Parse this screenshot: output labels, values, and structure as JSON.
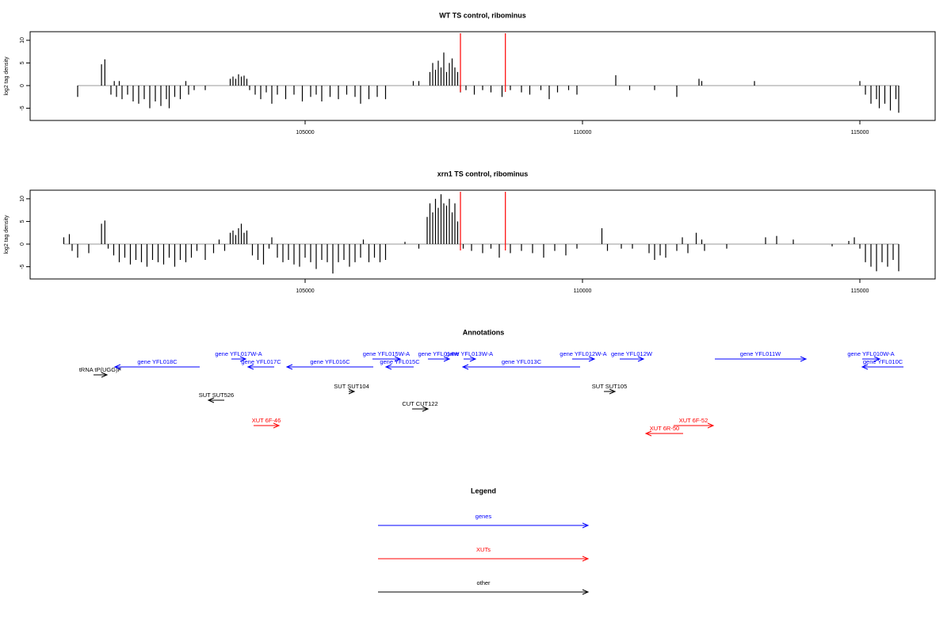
{
  "chart_data": [
    {
      "type": "bar",
      "title": "WT TS control, ribominus",
      "ylabel": "log2 tag density",
      "color": "#000000",
      "xlim": [
        100043,
        116357
      ],
      "ylim": [
        -7.7,
        11.9
      ],
      "xticks": [
        105000,
        110000,
        115000
      ],
      "yticks": [
        -5,
        0,
        5,
        10
      ],
      "vlines": [
        107800,
        108610
      ],
      "vline_color": "#ff0000",
      "baseline_color": "#999999",
      "x": [
        100900,
        101330,
        101390,
        101500,
        101560,
        101600,
        101650,
        101700,
        101800,
        101900,
        102000,
        102100,
        102200,
        102300,
        102400,
        102500,
        102550,
        102650,
        102750,
        102850,
        102900,
        103000,
        103200,
        103650,
        103700,
        103750,
        103800,
        103850,
        103900,
        103950,
        104000,
        104100,
        104200,
        104300,
        104400,
        104500,
        104650,
        104800,
        104950,
        105100,
        105200,
        105300,
        105450,
        105600,
        105750,
        105900,
        106000,
        106150,
        106300,
        106450,
        106950,
        107050,
        107250,
        107300,
        107350,
        107400,
        107450,
        107500,
        107550,
        107600,
        107650,
        107700,
        107750,
        107800,
        107900,
        108050,
        108200,
        108350,
        108550,
        108700,
        108900,
        109050,
        109250,
        109400,
        109550,
        109750,
        109900,
        110600,
        110850,
        111300,
        111700,
        112100,
        112150,
        113100,
        115000,
        115100,
        115200,
        115300,
        115350,
        115450,
        115550,
        115650,
        115700
      ],
      "values": [
        -2.5,
        4.7,
        5.8,
        -2,
        1,
        -2.5,
        1,
        -3,
        -2,
        -3.5,
        -4,
        -3,
        -5,
        -3.5,
        -4.5,
        -3,
        -5,
        -2.5,
        -3,
        1,
        -2,
        -1,
        -1,
        1.5,
        2,
        1.5,
        2.5,
        2,
        2.2,
        1.5,
        -1,
        -2,
        -3,
        -1.5,
        -4,
        -2,
        -3,
        -2,
        -3.5,
        -2.5,
        -2,
        -3.5,
        -2.5,
        -3,
        -2,
        -2.5,
        -4,
        -3,
        -2.5,
        -3,
        1,
        1,
        3,
        5,
        3.5,
        5.5,
        4,
        7.3,
        3,
        5,
        6,
        4,
        3,
        -1.5,
        -1,
        -2,
        -1,
        -1.5,
        -2.5,
        -1,
        -1.5,
        -2,
        -1,
        -3,
        -1.5,
        -1,
        -2,
        2.3,
        -1,
        -1,
        -2.5,
        1.5,
        1,
        1,
        1,
        -2,
        -4,
        -3,
        -5,
        -4,
        -5.5,
        -3,
        -6
      ]
    },
    {
      "type": "bar",
      "title": "xrn1 TS control, ribominus",
      "ylabel": "log2 tag density",
      "color": "#000000",
      "xlim": [
        100043,
        116357
      ],
      "ylim": [
        -7.7,
        11.9
      ],
      "xticks": [
        105000,
        110000,
        115000
      ],
      "yticks": [
        -5,
        0,
        5,
        10
      ],
      "vlines": [
        107800,
        108610
      ],
      "vline_color": "#ff0000",
      "baseline_color": "#999999",
      "x": [
        100650,
        100750,
        100800,
        100900,
        101100,
        101330,
        101390,
        101450,
        101550,
        101650,
        101750,
        101850,
        101950,
        102050,
        102150,
        102250,
        102350,
        102450,
        102550,
        102650,
        102750,
        102850,
        102950,
        103050,
        103200,
        103350,
        103450,
        103550,
        103650,
        103700,
        103750,
        103800,
        103850,
        103900,
        103950,
        104050,
        104150,
        104250,
        104350,
        104400,
        104500,
        104600,
        104700,
        104800,
        104900,
        105000,
        105100,
        105200,
        105300,
        105400,
        105500,
        105600,
        105700,
        105800,
        105900,
        106000,
        106050,
        106150,
        106250,
        106350,
        106450,
        106800,
        107050,
        107200,
        107250,
        107300,
        107350,
        107400,
        107450,
        107500,
        107550,
        107600,
        107650,
        107700,
        107750,
        107850,
        108000,
        108200,
        108350,
        108500,
        108700,
        108900,
        109100,
        109300,
        109500,
        109700,
        109900,
        110350,
        110450,
        110700,
        110900,
        111200,
        111300,
        111400,
        111500,
        111700,
        111800,
        111900,
        112050,
        112150,
        112200,
        112600,
        113300,
        113500,
        113800,
        114500,
        114800,
        114900,
        115000,
        115100,
        115200,
        115300,
        115400,
        115500,
        115600,
        115700
      ],
      "values": [
        1.5,
        2.2,
        -1.5,
        -3,
        -2,
        4.5,
        5.2,
        -1,
        -2.5,
        -4,
        -3,
        -4.5,
        -3.5,
        -4,
        -5,
        -3.5,
        -4,
        -4.5,
        -3,
        -5,
        -3.5,
        -4,
        -3,
        -1.5,
        -3.5,
        -2,
        1,
        -1.5,
        2.5,
        3,
        2,
        3.5,
        4.5,
        2.5,
        3,
        -2.5,
        -3.5,
        -4.5,
        -1,
        1.5,
        -3,
        -4,
        -3.5,
        -4.5,
        -5,
        -3,
        -4,
        -5.5,
        -3.5,
        -4,
        -6.5,
        -4,
        -3.5,
        -5,
        -4,
        -3,
        1,
        -4,
        -3,
        -4,
        -3.5,
        0.5,
        -1,
        6,
        9,
        7,
        10,
        8,
        11,
        9,
        8.5,
        10,
        7,
        9,
        5,
        -1,
        -1.5,
        -2,
        -1,
        -3,
        -2,
        -1.5,
        -2,
        -3,
        -1.5,
        -2.5,
        -1,
        3.5,
        -1.5,
        -1,
        -1,
        -2,
        -3.5,
        -2.5,
        -3,
        -1.5,
        1.5,
        -2,
        2.5,
        1,
        -1.5,
        -1,
        1.5,
        1.8,
        1,
        -0.5,
        0.7,
        1.5,
        -1,
        -4,
        -5,
        -6,
        -4,
        -5,
        -3.5,
        -6
      ]
    }
  ],
  "annotations": {
    "title": "Annotations",
    "features": [
      {
        "label": "tRNA tP(UGG)F",
        "start": 101186,
        "end": 101429,
        "strand": "+",
        "kind": "other"
      },
      {
        "label": "gene YFL018C",
        "start": 101571,
        "end": 103100,
        "strand": "-",
        "kind": "genes"
      },
      {
        "label": "gene YFL017W-A",
        "start": 103671,
        "end": 103929,
        "strand": "+",
        "kind": "genes"
      },
      {
        "label": "gene YFL017C",
        "start": 103971,
        "end": 104443,
        "strand": "-",
        "kind": "genes"
      },
      {
        "label": "gene YFL016C",
        "start": 104671,
        "end": 106229,
        "strand": "-",
        "kind": "genes"
      },
      {
        "label": "gene YFL015W-A",
        "start": 106214,
        "end": 106714,
        "strand": "+",
        "kind": "genes"
      },
      {
        "label": "gene YFL015C",
        "start": 106457,
        "end": 106957,
        "strand": "-",
        "kind": "genes"
      },
      {
        "label": "gene YFL014W",
        "start": 107214,
        "end": 107600,
        "strand": "+",
        "kind": "genes"
      },
      {
        "label": "gene YFL013W-A",
        "start": 107857,
        "end": 108071,
        "strand": "+",
        "kind": "genes"
      },
      {
        "label": "gene YFL013C",
        "start": 107843,
        "end": 109957,
        "strand": "-",
        "kind": "genes"
      },
      {
        "label": "gene YFL012W-A",
        "start": 109814,
        "end": 110214,
        "strand": "+",
        "kind": "genes"
      },
      {
        "label": "gene YFL012W",
        "start": 110671,
        "end": 111100,
        "strand": "+",
        "kind": "genes"
      },
      {
        "label": "gene YFL011W",
        "start": 112386,
        "end": 114029,
        "strand": "+",
        "kind": "genes"
      },
      {
        "label": "gene YFL010W-A",
        "start": 115043,
        "end": 115357,
        "strand": "+",
        "kind": "genes"
      },
      {
        "label": "gene YFL010C",
        "start": 115043,
        "end": 115786,
        "strand": "-",
        "kind": "genes"
      },
      {
        "label": "SUT SUT526",
        "start": 103257,
        "end": 103543,
        "strand": "-",
        "kind": "other"
      },
      {
        "label": "SUT SUT104",
        "start": 105786,
        "end": 105886,
        "strand": "+",
        "kind": "other"
      },
      {
        "label": "CUT CUT122",
        "start": 106929,
        "end": 107214,
        "strand": "+",
        "kind": "other"
      },
      {
        "label": "SUT SUT105",
        "start": 110386,
        "end": 110586,
        "strand": "+",
        "kind": "other"
      },
      {
        "label": "XUT 6F-46",
        "start": 104071,
        "end": 104529,
        "strand": "+",
        "kind": "XUTs"
      },
      {
        "label": "XUT 6R-50",
        "start": 111143,
        "end": 111814,
        "strand": "-",
        "kind": "XUTs"
      },
      {
        "label": "XUT 6F-52",
        "start": 111643,
        "end": 112357,
        "strand": "+",
        "kind": "XUTs"
      }
    ]
  },
  "legend": {
    "title": "Legend",
    "items": [
      {
        "name": "genes",
        "color": "#0000ff"
      },
      {
        "name": "XUTs",
        "color": "#ff0000"
      },
      {
        "name": "other",
        "color": "#000000"
      }
    ]
  }
}
